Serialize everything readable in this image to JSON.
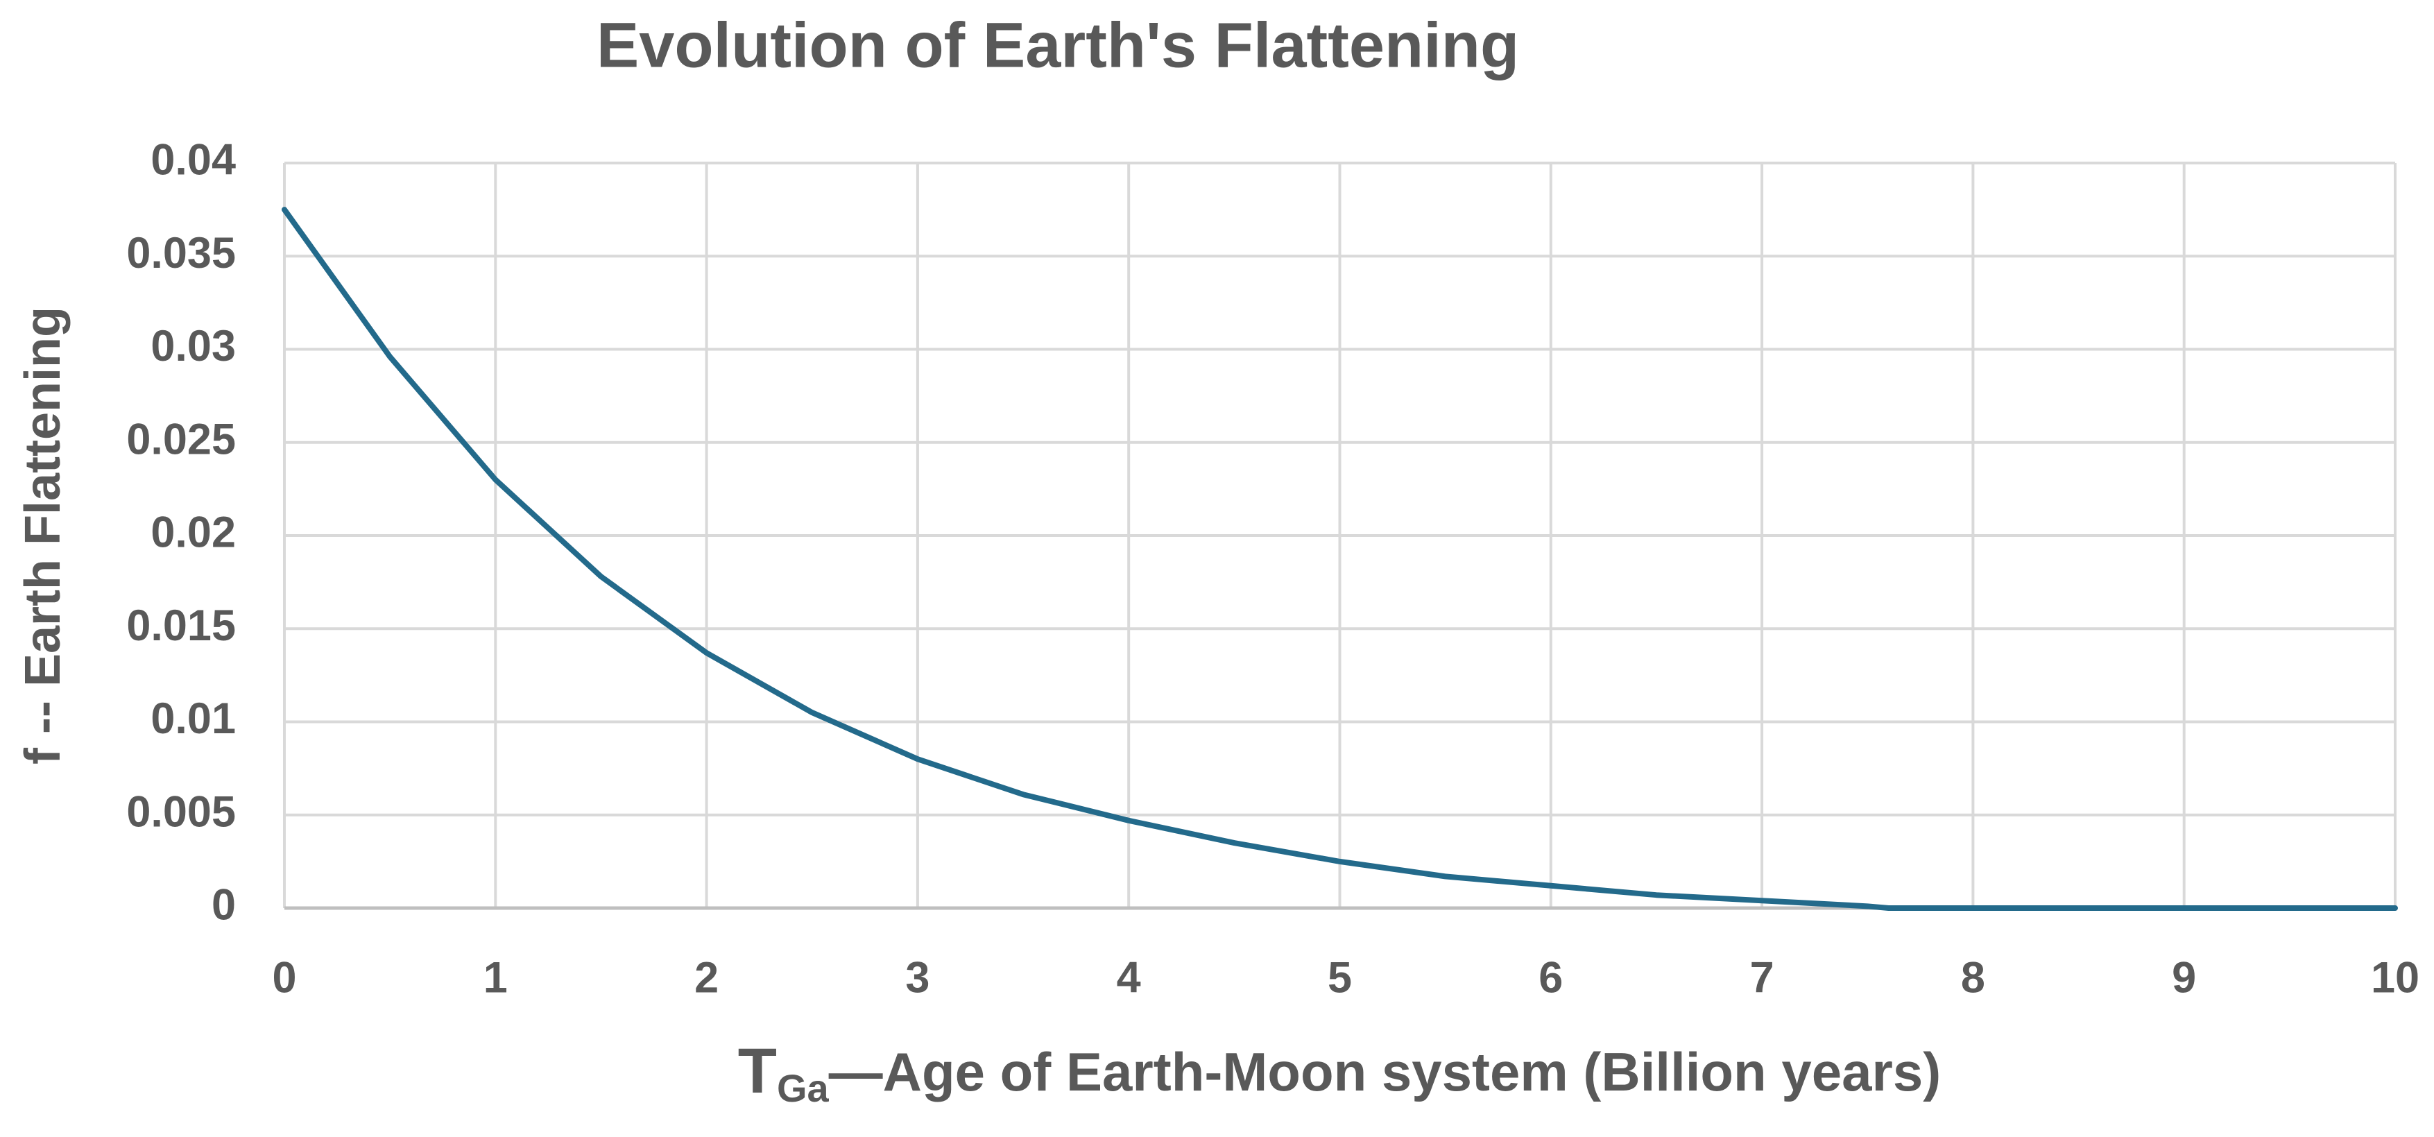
{
  "chart_data": {
    "type": "line",
    "title": "Evolution of Earth's Flattening",
    "xlabel": {
      "main": "T",
      "subscript": "Ga",
      "rest": "—Age of Earth-Moon system (Billion years)"
    },
    "ylabel": "f -- Earth Flattening",
    "x": [
      0,
      0.5,
      1,
      1.5,
      2,
      2.5,
      3,
      3.5,
      4,
      4.5,
      5,
      5.5,
      6,
      6.5,
      7,
      7.5,
      7.6,
      8,
      9,
      10
    ],
    "series": [
      {
        "color": "#236a8b",
        "values": [
          0.0375,
          0.0296,
          0.023,
          0.0178,
          0.0137,
          0.0105,
          0.008,
          0.0061,
          0.0047,
          0.0035,
          0.0025,
          0.0017,
          0.0012,
          0.0007,
          0.0004,
          0.0001,
          0,
          0,
          0,
          0
        ]
      }
    ],
    "xlim": [
      0,
      10
    ],
    "ylim": [
      0,
      0.04
    ],
    "xticks": [
      0,
      1,
      2,
      3,
      4,
      5,
      6,
      7,
      8,
      9,
      10
    ],
    "yticks": [
      0,
      0.005,
      0.01,
      0.015,
      0.02,
      0.025,
      0.03,
      0.035,
      0.04
    ],
    "grid": true
  }
}
